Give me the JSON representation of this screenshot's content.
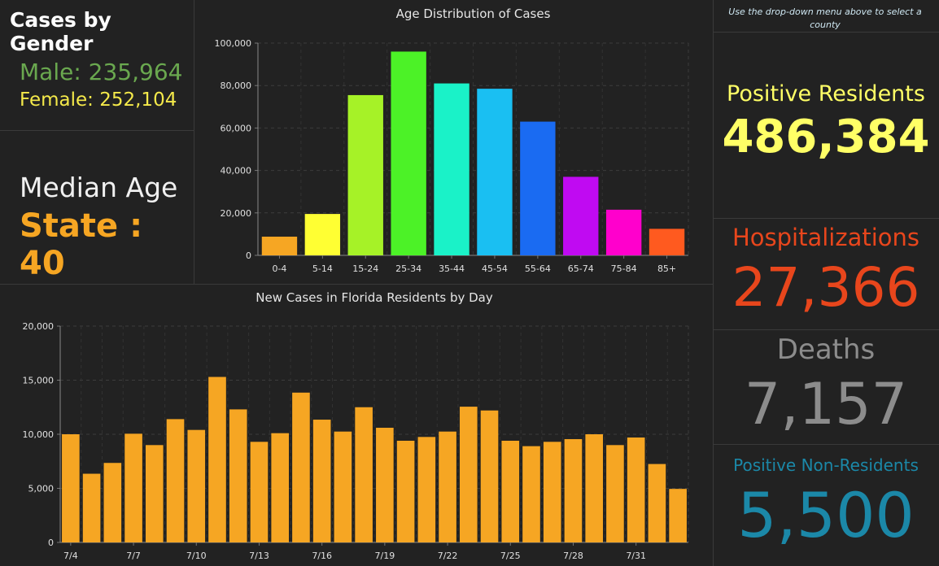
{
  "gender": {
    "title": "Cases by Gender",
    "male": "Male: 235,964",
    "female": "Female: 252,104"
  },
  "median": {
    "label": "Median Age",
    "value": "State : 40"
  },
  "note": "Use the drop-down menu above to select a county",
  "stats": {
    "positive_residents": {
      "label": "Positive Residents",
      "value": "486,384",
      "color": "#ffff66"
    },
    "hospitalizations": {
      "label": "Hospitalizations",
      "value": "27,366",
      "color": "#e8461c"
    },
    "deaths": {
      "label": "Deaths",
      "value": "7,157",
      "color": "#8c8c8c"
    },
    "non_residents": {
      "label": "Positive Non-Residents",
      "value": "5,500",
      "color": "#1b88a8"
    }
  },
  "chart_data": [
    {
      "type": "bar",
      "title": "Age Distribution of Cases",
      "categories": [
        "0-4",
        "5-14",
        "15-24",
        "25-34",
        "35-44",
        "45-54",
        "55-64",
        "65-74",
        "75-84",
        "85+"
      ],
      "values": [
        8800,
        19500,
        75500,
        96000,
        81000,
        78500,
        63000,
        37000,
        21500,
        12500
      ],
      "colors": [
        "#f6a623",
        "#ffff33",
        "#a6f227",
        "#4cf227",
        "#1af2c8",
        "#1abff2",
        "#1a6bf2",
        "#c00af2",
        "#ff00cc",
        "#ff5a1f"
      ],
      "ylim": [
        0,
        100000
      ],
      "yticks": [
        "0",
        "20,000",
        "40,000",
        "60,000",
        "80,000",
        "100,000"
      ],
      "ytick_values": [
        0,
        20000,
        40000,
        60000,
        80000,
        100000
      ],
      "grid": true
    },
    {
      "type": "bar",
      "title": "New Cases in Florida Residents by Day",
      "categories": [
        "7/4",
        "7/5",
        "7/6",
        "7/7",
        "7/8",
        "7/9",
        "7/10",
        "7/11",
        "7/12",
        "7/13",
        "7/14",
        "7/15",
        "7/16",
        "7/17",
        "7/18",
        "7/19",
        "7/20",
        "7/21",
        "7/22",
        "7/23",
        "7/24",
        "7/25",
        "7/26",
        "7/27",
        "7/28",
        "7/29",
        "7/30",
        "7/31",
        "8/1",
        "8/2"
      ],
      "values": [
        10000,
        6350,
        7350,
        10050,
        9000,
        11400,
        10400,
        15300,
        12300,
        9300,
        10100,
        13850,
        11350,
        10250,
        12500,
        10600,
        9400,
        9750,
        10250,
        12550,
        12200,
        9400,
        8900,
        9300,
        9550,
        10000,
        9000,
        9700,
        7250,
        4950
      ],
      "tick_labels": [
        "7/4",
        "7/7",
        "7/10",
        "7/13",
        "7/16",
        "7/19",
        "7/22",
        "7/25",
        "7/28",
        "7/31"
      ],
      "tick_indices": [
        0,
        3,
        6,
        9,
        12,
        15,
        18,
        21,
        24,
        27
      ],
      "color": "#f6a623",
      "ylim": [
        0,
        20000
      ],
      "yticks": [
        "0",
        "5,000",
        "10,000",
        "15,000",
        "20,000"
      ],
      "ytick_values": [
        0,
        5000,
        10000,
        15000,
        20000
      ],
      "grid": true
    }
  ]
}
